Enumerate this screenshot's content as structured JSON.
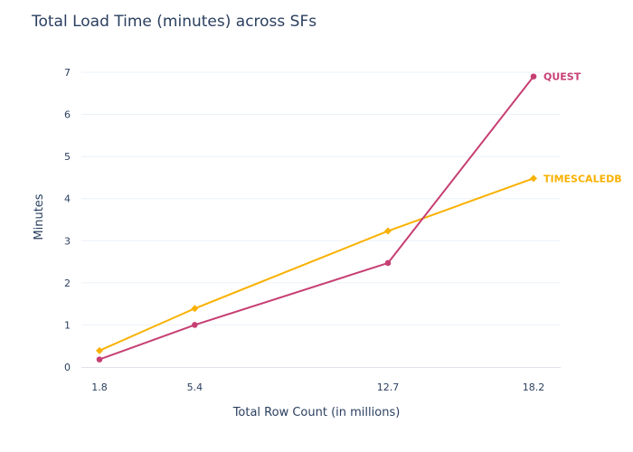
{
  "chart_data": {
    "type": "line",
    "title": "Total Load Time (minutes) across SFs",
    "xlabel": "Total Row Count (in millions)",
    "ylabel": "Minutes",
    "x": [
      1.8,
      5.4,
      12.7,
      18.2
    ],
    "x_tick_labels": [
      "1.8",
      "5.4",
      "12.7",
      "18.2"
    ],
    "y_ticks": [
      0,
      1,
      2,
      3,
      4,
      5,
      6,
      7
    ],
    "ylim": [
      0,
      7.3
    ],
    "xlim": [
      1.8,
      18.2
    ],
    "grid": "horizontal",
    "legend": "none",
    "series": [
      {
        "name": "QUEST",
        "color": "#c63f73",
        "marker": "circle",
        "values": [
          0.18,
          1.0,
          2.47,
          6.9
        ]
      },
      {
        "name": "TIMESCALEDB",
        "color": "#f9b100",
        "marker": "diamond",
        "values": [
          0.39,
          1.39,
          3.23,
          4.48
        ]
      }
    ]
  }
}
